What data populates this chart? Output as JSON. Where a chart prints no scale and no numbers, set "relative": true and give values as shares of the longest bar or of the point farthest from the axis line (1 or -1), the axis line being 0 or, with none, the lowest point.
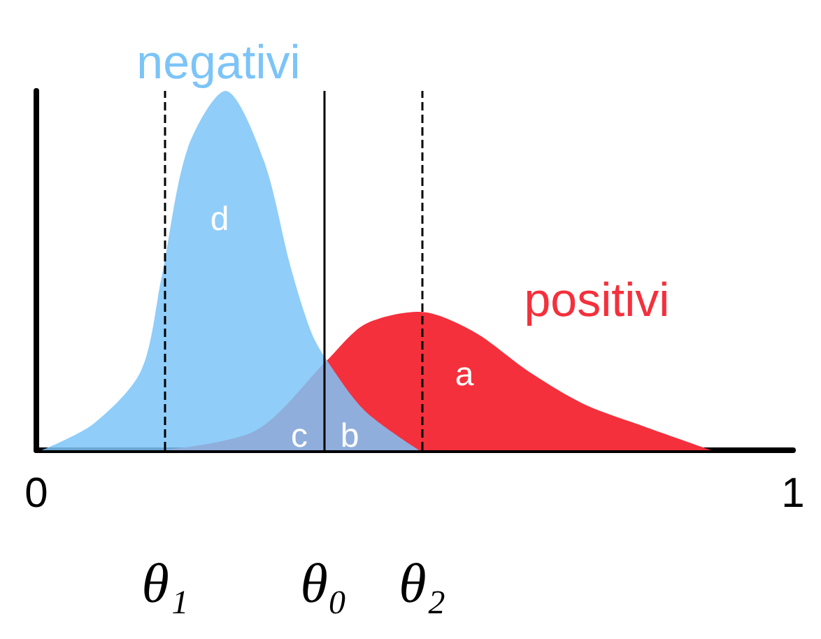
{
  "chart_data": {
    "type": "area",
    "relative": true,
    "xlim": [
      0,
      1
    ],
    "xticks": [
      0,
      1
    ],
    "legend": false,
    "grid": false,
    "series": [
      {
        "name": "positivi",
        "color": "#f4303c",
        "x": [
          0.165,
          0.29,
          0.384,
          0.434,
          0.506,
          0.578,
          0.65,
          0.722,
          0.794,
          0.892
        ],
        "values": [
          0,
          0.055,
          0.25,
          0.35,
          0.385,
          0.33,
          0.22,
          0.13,
          0.073,
          0
        ]
      },
      {
        "name": "negativi",
        "color": "#7cc4f8",
        "x": [
          0.007,
          0.075,
          0.138,
          0.165,
          0.2,
          0.25,
          0.3,
          0.336,
          0.363,
          0.384,
          0.434,
          0.506
        ],
        "values": [
          0,
          0.073,
          0.22,
          0.476,
          0.84,
          1,
          0.81,
          0.51,
          0.33,
          0.25,
          0.11,
          0
        ]
      }
    ],
    "ref_lines": [
      {
        "axis": "x",
        "value": 0.17,
        "label": "θ₁",
        "line_style": "dashed"
      },
      {
        "axis": "x",
        "value": 0.384,
        "label": "θ₀",
        "line_style": "solid"
      },
      {
        "axis": "x",
        "value": 0.508,
        "label": "θ₂",
        "line_style": "dashed"
      }
    ],
    "annotations": [
      "d",
      "c",
      "b",
      "a"
    ]
  }
}
